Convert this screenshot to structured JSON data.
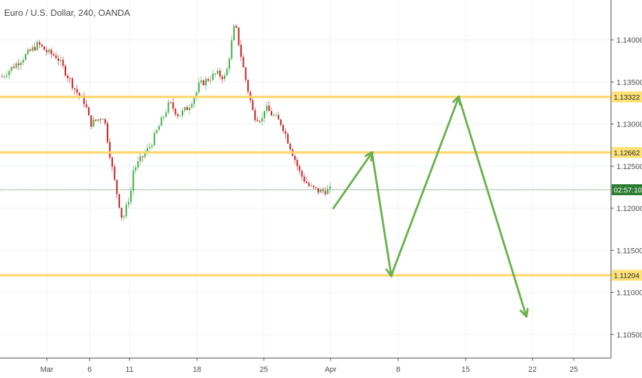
{
  "header": {
    "title": "Euro / U.S. Dollar, 240, OANDA"
  },
  "colors": {
    "up": "#4caf50",
    "down": "#c62828",
    "level": "#fdd56a",
    "level_tag": "#fde27a",
    "current": "#2e7d32",
    "arrow": "#6ab04c",
    "grid": "#eef0f3",
    "axis": "#444444"
  },
  "chart_data": {
    "type": "candlestick",
    "title": "Euro / U.S. Dollar, 240, OANDA",
    "x_ticks": [
      "Mar",
      "6",
      "11",
      "18",
      "25",
      "Apr",
      "8",
      "15",
      "22",
      "25"
    ],
    "y_ticks": [
      "1.14000",
      "1.13500",
      "1.13000",
      "1.12500",
      "1.12000",
      "1.11500",
      "1.11000",
      "1.10500"
    ],
    "ylim": [
      1.1035,
      1.1445
    ],
    "grid": true,
    "price_series": [
      [
        "Feb 26",
        1.1355
      ],
      [
        "Feb 28",
        1.1395
      ],
      [
        "Mar 1",
        1.1385
      ],
      [
        "Mar 2",
        1.138
      ],
      [
        "Mar 3",
        1.136
      ],
      [
        "Mar 4",
        1.134
      ],
      [
        "Mar 5",
        1.1325
      ],
      [
        "Mar 6",
        1.13
      ],
      [
        "Mar 7",
        1.131
      ],
      [
        "Mar 8",
        1.124
      ],
      [
        "Mar 9",
        1.1185
      ],
      [
        "Mar 10",
        1.1225
      ],
      [
        "Mar 11",
        1.124
      ],
      [
        "Mar 12",
        1.1275
      ],
      [
        "Mar 13",
        1.13
      ],
      [
        "Mar 14",
        1.1325
      ],
      [
        "Mar 15",
        1.131
      ],
      [
        "Mar 16",
        1.132
      ],
      [
        "Mar 17",
        1.134
      ],
      [
        "Mar 18",
        1.1345
      ],
      [
        "Mar 19",
        1.136
      ],
      [
        "Mar 20",
        1.1355
      ],
      [
        "Mar 21",
        1.142
      ],
      [
        "Mar 22",
        1.136
      ],
      [
        "Mar 23",
        1.131
      ],
      [
        "Mar 24",
        1.1305
      ],
      [
        "Mar 25",
        1.132
      ],
      [
        "Mar 26",
        1.13
      ],
      [
        "Mar 27",
        1.127
      ],
      [
        "Mar 28",
        1.124
      ],
      [
        "Mar 29",
        1.1225
      ],
      [
        "Mar 30",
        1.122
      ],
      [
        "Apr 1",
        1.1222
      ]
    ],
    "levels": [
      {
        "label": "1.13322",
        "value": 1.13322
      },
      {
        "label": "1.12662",
        "value": 1.12662
      },
      {
        "label": "1.11204",
        "value": 1.11204
      }
    ],
    "current": {
      "label": "02:57:10",
      "value": 1.1222
    },
    "projection": [
      [
        "Apr 1",
        1.12
      ],
      [
        "Apr 5",
        1.1266
      ],
      [
        "Apr 7",
        1.112
      ],
      [
        "Apr 14",
        1.1332
      ],
      [
        "Apr 21",
        1.1072
      ]
    ]
  }
}
